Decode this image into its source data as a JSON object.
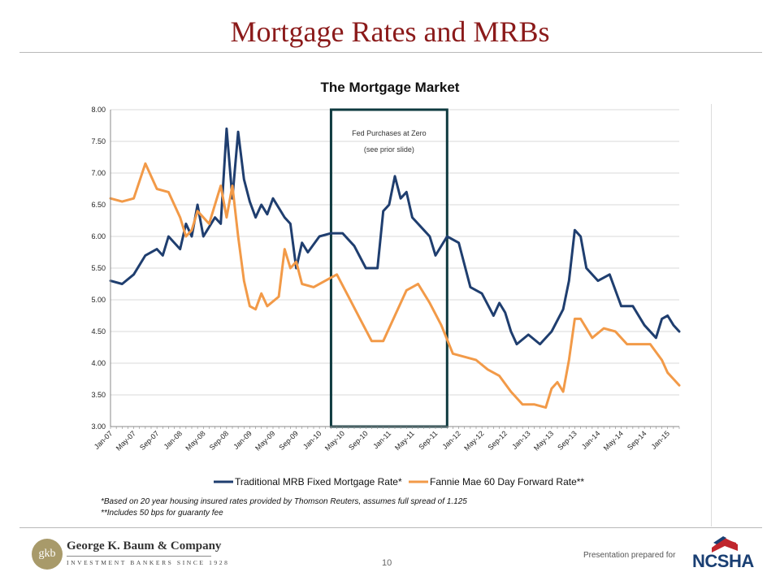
{
  "slide": {
    "title": "Mortgage Rates and MRBs",
    "page_number": "10",
    "prepared_label": "Presentation prepared for",
    "company": {
      "monogram": "gkb",
      "name": "George K. Baum & Company",
      "subtitle": "INVESTMENT BANKERS SINCE 1928"
    },
    "client_logo_text": "NCSHA"
  },
  "footnotes": [
    "*Based on 20 year housing insured rates provided by Thomson Reuters, assumes full spread of 1.125",
    "**Includes 50 bps for guaranty fee"
  ],
  "colors": {
    "title": "#8b1a1a",
    "mrb": "#1f3e6f",
    "fannie": "#f29a48",
    "box": "#0e3a3f",
    "grid": "#d9d9d9"
  },
  "chart_data": {
    "type": "line",
    "title": "The Mortgage Market",
    "ylim": [
      3.0,
      8.0
    ],
    "yticks": [
      "3.00",
      "3.50",
      "4.00",
      "4.50",
      "5.00",
      "5.50",
      "6.00",
      "6.50",
      "7.00",
      "7.50",
      "8.00"
    ],
    "grid": "horizontal",
    "legend": "bottom",
    "x_start": "Jan-07",
    "x_end": "Mar-15",
    "xticks": [
      "Jan-07",
      "May-07",
      "Sep-07",
      "Jan-08",
      "May-08",
      "Sep-08",
      "Jan-09",
      "May-09",
      "Sep-09",
      "Jan-10",
      "May-10",
      "Sep-10",
      "Jan-11",
      "May-11",
      "Sep-11",
      "Jan-12",
      "May-12",
      "Sep-12",
      "Jan-13",
      "May-13",
      "Sep-13",
      "Jan-14",
      "May-14",
      "Sep-14",
      "Jan-15"
    ],
    "annotation": {
      "lines": [
        "Fed Purchases at Zero",
        "(see prior slide)"
      ],
      "x_from": "Mar-10",
      "x_to": "Nov-11"
    },
    "series": [
      {
        "name": "Traditional MRB Fixed Mortgage Rate*",
        "color": "#1f3e6f",
        "x": [
          "Jan-07",
          "Mar-07",
          "May-07",
          "Jul-07",
          "Sep-07",
          "Oct-07",
          "Nov-07",
          "Jan-08",
          "Feb-08",
          "Mar-08",
          "Apr-08",
          "May-08",
          "Jul-08",
          "Aug-08",
          "Sep-08",
          "Oct-08",
          "Nov-08",
          "Dec-08",
          "Jan-09",
          "Feb-09",
          "Mar-09",
          "Apr-09",
          "May-09",
          "Jul-09",
          "Aug-09",
          "Sep-09",
          "Oct-09",
          "Nov-09",
          "Jan-10",
          "Mar-10",
          "May-10",
          "Jul-10",
          "Sep-10",
          "Nov-10",
          "Dec-10",
          "Jan-11",
          "Feb-11",
          "Mar-11",
          "Apr-11",
          "May-11",
          "Jul-11",
          "Aug-11",
          "Sep-11",
          "Nov-11",
          "Jan-12",
          "Mar-12",
          "May-12",
          "Jul-12",
          "Aug-12",
          "Sep-12",
          "Oct-12",
          "Nov-12",
          "Jan-13",
          "Mar-13",
          "May-13",
          "Jul-13",
          "Aug-13",
          "Sep-13",
          "Oct-13",
          "Nov-13",
          "Jan-14",
          "Mar-14",
          "May-14",
          "Jul-14",
          "Sep-14",
          "Nov-14",
          "Dec-14",
          "Jan-15",
          "Feb-15",
          "Mar-15"
        ],
        "values": [
          5.3,
          5.25,
          5.4,
          5.7,
          5.8,
          5.7,
          6.0,
          5.8,
          6.2,
          6.0,
          6.5,
          6.0,
          6.3,
          6.2,
          7.7,
          6.6,
          7.65,
          6.9,
          6.55,
          6.3,
          6.5,
          6.35,
          6.6,
          6.3,
          6.2,
          5.5,
          5.9,
          5.75,
          6.0,
          6.05,
          6.05,
          5.85,
          5.5,
          5.5,
          6.4,
          6.5,
          6.95,
          6.6,
          6.7,
          6.3,
          6.1,
          6.0,
          5.7,
          6.0,
          5.9,
          5.2,
          5.1,
          4.75,
          4.95,
          4.8,
          4.5,
          4.3,
          4.45,
          4.3,
          4.5,
          4.85,
          5.3,
          6.1,
          6.0,
          5.5,
          5.3,
          5.4,
          4.9,
          4.9,
          4.6,
          4.4,
          4.7,
          4.75,
          4.6,
          4.5
        ]
      },
      {
        "name": "Fannie Mae 60 Day Forward Rate**",
        "color": "#f29a48",
        "x": [
          "Jan-07",
          "Mar-07",
          "May-07",
          "Jul-07",
          "Sep-07",
          "Nov-07",
          "Jan-08",
          "Feb-08",
          "Mar-08",
          "Apr-08",
          "Jun-08",
          "Aug-08",
          "Sep-08",
          "Oct-08",
          "Nov-08",
          "Dec-08",
          "Jan-09",
          "Feb-09",
          "Mar-09",
          "Apr-09",
          "Jun-09",
          "Jul-09",
          "Aug-09",
          "Sep-09",
          "Oct-09",
          "Dec-09",
          "Feb-10",
          "Apr-10",
          "Jun-10",
          "Aug-10",
          "Oct-10",
          "Dec-10",
          "Feb-11",
          "Apr-11",
          "Jun-11",
          "Aug-11",
          "Oct-11",
          "Dec-11",
          "Feb-12",
          "Apr-12",
          "Jun-12",
          "Aug-12",
          "Oct-12",
          "Dec-12",
          "Feb-13",
          "Apr-13",
          "May-13",
          "Jun-13",
          "Jul-13",
          "Aug-13",
          "Sep-13",
          "Oct-13",
          "Dec-13",
          "Feb-14",
          "Apr-14",
          "Jun-14",
          "Aug-14",
          "Oct-14",
          "Dec-14",
          "Jan-15",
          "Feb-15",
          "Mar-15"
        ],
        "values": [
          6.6,
          6.55,
          6.6,
          7.15,
          6.75,
          6.7,
          6.3,
          6.0,
          6.1,
          6.4,
          6.2,
          6.8,
          6.3,
          6.8,
          6.0,
          5.3,
          4.9,
          4.85,
          5.1,
          4.9,
          5.05,
          5.8,
          5.5,
          5.6,
          5.25,
          5.2,
          5.3,
          5.4,
          5.05,
          4.7,
          4.35,
          4.35,
          4.75,
          5.15,
          5.25,
          4.95,
          4.6,
          4.15,
          4.1,
          4.05,
          3.9,
          3.8,
          3.55,
          3.35,
          3.35,
          3.3,
          3.6,
          3.7,
          3.55,
          4.05,
          4.7,
          4.7,
          4.4,
          4.55,
          4.5,
          4.3,
          4.3,
          4.3,
          4.05,
          3.85,
          3.75,
          3.65
        ]
      }
    ]
  }
}
